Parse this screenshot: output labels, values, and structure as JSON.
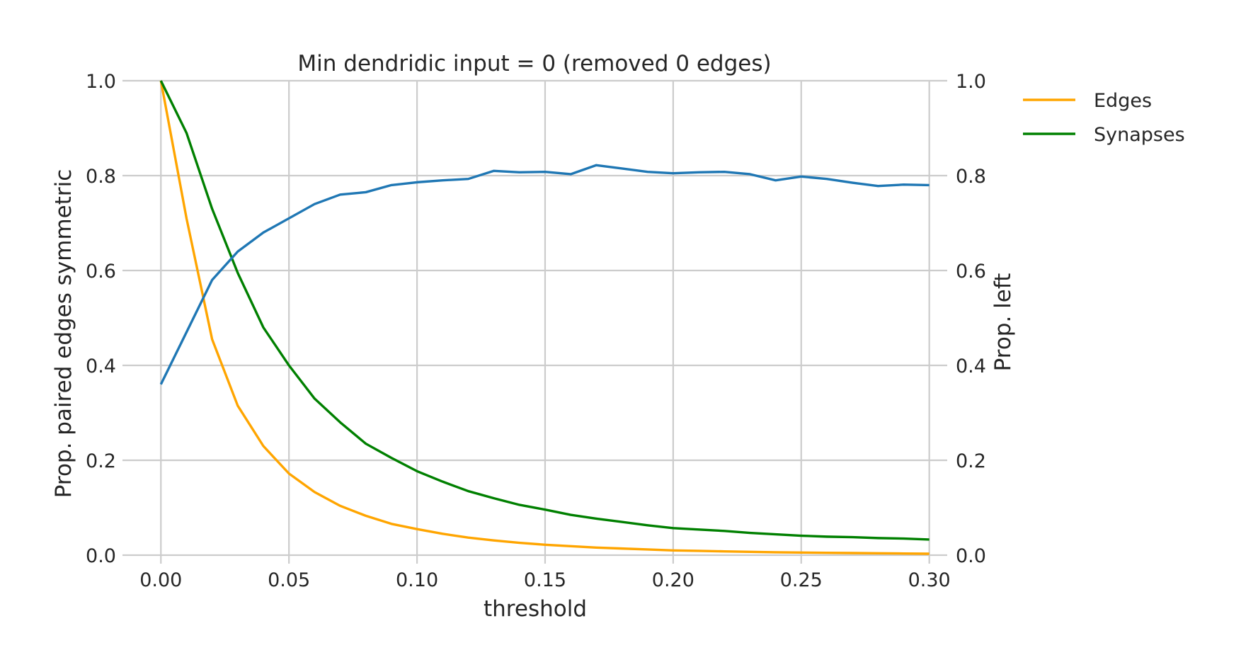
{
  "chart_data": {
    "type": "line",
    "title": "Min dendridic input = 0 (removed 0 edges)",
    "xlabel": "threshold",
    "ylabel_left": "Prop. paired edges symmetric",
    "ylabel_right": "Prop. left",
    "xlim": [
      -0.015,
      0.307
    ],
    "ylim": [
      0,
      1.0
    ],
    "x_ticks": [
      "0.00",
      "0.05",
      "0.10",
      "0.15",
      "0.20",
      "0.25",
      "0.30"
    ],
    "x_tick_values": [
      0,
      0.05,
      0.1,
      0.15,
      0.2,
      0.25,
      0.3
    ],
    "y_ticks_left": [
      "0.0",
      "0.2",
      "0.4",
      "0.6",
      "0.8",
      "1.0"
    ],
    "y_ticks_right": [
      "0.0",
      "0.2",
      "0.4",
      "0.6",
      "0.8",
      "1.0"
    ],
    "y_tick_values": [
      0,
      0.2,
      0.4,
      0.6,
      0.8,
      1.0
    ],
    "grid": true,
    "legend_position": "outside-right",
    "x": [
      0.0,
      0.01,
      0.02,
      0.03,
      0.04,
      0.05,
      0.06,
      0.07,
      0.08,
      0.09,
      0.1,
      0.11,
      0.12,
      0.13,
      0.14,
      0.15,
      0.16,
      0.17,
      0.18,
      0.19,
      0.2,
      0.21,
      0.22,
      0.23,
      0.24,
      0.25,
      0.26,
      0.27,
      0.28,
      0.29,
      0.3
    ],
    "series": [
      {
        "color": "#1f77b4",
        "axis": "left",
        "values": [
          0.36,
          0.47,
          0.58,
          0.64,
          0.68,
          0.71,
          0.74,
          0.76,
          0.765,
          0.78,
          0.786,
          0.79,
          0.793,
          0.81,
          0.807,
          0.808,
          0.803,
          0.822,
          0.815,
          0.808,
          0.805,
          0.807,
          0.808,
          0.803,
          0.79,
          0.798,
          0.793,
          0.785,
          0.778,
          0.781,
          0.78
        ]
      },
      {
        "name": "Edges",
        "color": "#ffa500",
        "axis": "right",
        "values": [
          1.0,
          0.71,
          0.455,
          0.315,
          0.23,
          0.172,
          0.133,
          0.104,
          0.083,
          0.066,
          0.055,
          0.045,
          0.037,
          0.031,
          0.026,
          0.022,
          0.019,
          0.016,
          0.014,
          0.012,
          0.01,
          0.009,
          0.008,
          0.007,
          0.006,
          0.0055,
          0.005,
          0.0045,
          0.004,
          0.0035,
          0.003
        ]
      },
      {
        "name": "Synapses",
        "color": "#008000",
        "axis": "right",
        "values": [
          1.0,
          0.89,
          0.73,
          0.595,
          0.48,
          0.4,
          0.33,
          0.28,
          0.235,
          0.205,
          0.177,
          0.155,
          0.135,
          0.12,
          0.106,
          0.096,
          0.085,
          0.077,
          0.07,
          0.063,
          0.057,
          0.054,
          0.051,
          0.047,
          0.044,
          0.041,
          0.039,
          0.038,
          0.036,
          0.035,
          0.033
        ]
      }
    ]
  }
}
